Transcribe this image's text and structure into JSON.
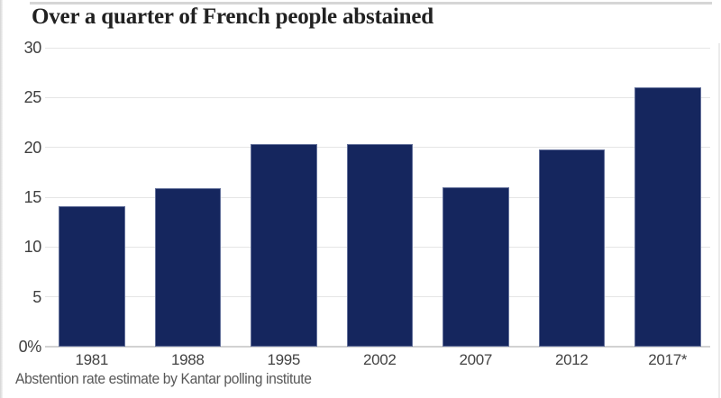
{
  "chart_data": {
    "type": "bar",
    "title": "Over a quarter of French people abstained",
    "caption": "Abstention rate estimate by Kantar polling institute",
    "categories": [
      "1981",
      "1988",
      "1995",
      "2002",
      "2007",
      "2012",
      "2017*"
    ],
    "values": [
      14.1,
      15.9,
      20.3,
      20.3,
      16.0,
      19.8,
      26.0
    ],
    "unit": "%",
    "xlabel": "",
    "ylabel": "",
    "ylim": [
      0,
      30
    ],
    "y_ticks": [
      {
        "label": "0%",
        "value": 0
      },
      {
        "label": "5",
        "value": 5
      },
      {
        "label": "10",
        "value": 10
      },
      {
        "label": "15",
        "value": 15
      },
      {
        "label": "20",
        "value": 20
      },
      {
        "label": "25",
        "value": 25
      },
      {
        "label": "30",
        "value": 30
      }
    ],
    "grid": "horizontal",
    "legend": "none",
    "colors": {
      "bar": "#15265e",
      "gridline": "#e5e5e5",
      "baseline": "#d2d2d2",
      "title_text": "#212121",
      "axis_label_text": "#3f3f3f",
      "caption_text": "#585858",
      "top_rule": "#d6d6d6"
    }
  }
}
